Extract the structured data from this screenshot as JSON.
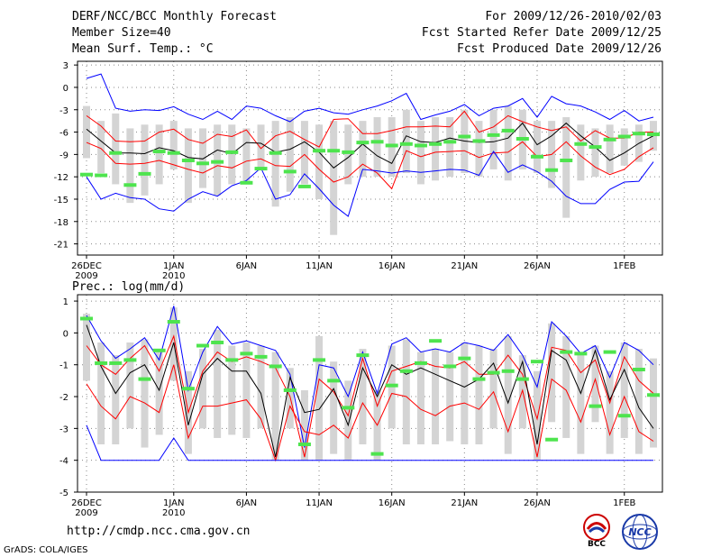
{
  "header": {
    "title": "DERF/NCC/BCC Monthly Forecast",
    "member": "Member Size=40",
    "variable": "Mean Surf. Temp.: °C",
    "period": "For 2009/12/26-2010/02/03",
    "start": "Fcst Started Refer Date 2009/12/25",
    "produced": "Fcst Produced Date 2009/12/26"
  },
  "footer": {
    "url": "http://cmdp.ncc.cma.gov.cn",
    "grads": "GrADS: COLA/IGES",
    "logo_bcc": "BCC",
    "logo_ncc": "NCC"
  },
  "colors": {
    "envelope": "#0000ff",
    "spread": "#ff0000",
    "mean": "#000000",
    "box": "#d4d4d4",
    "observed": "#4ee44e",
    "grid": "#888888"
  },
  "chart_data": [
    {
      "type": "line",
      "title": "Mean Surf. Temp.: °C",
      "ylim": [
        -22.5,
        3.5
      ],
      "yticks": [
        3,
        0,
        -3,
        -6,
        -9,
        -12,
        -15,
        -18,
        -21
      ],
      "x": [
        1,
        2,
        3,
        4,
        5,
        6,
        7,
        8,
        9,
        10,
        11,
        12,
        13,
        14,
        15,
        16,
        17,
        18,
        19,
        20,
        21,
        22,
        23,
        24,
        25,
        26,
        27,
        28,
        29,
        30,
        31,
        32,
        33,
        34,
        35,
        36,
        37,
        38,
        39,
        40
      ],
      "xtick_positions": [
        1,
        7,
        12,
        17,
        22,
        27,
        32,
        38
      ],
      "xtick_labels": [
        "26DEC",
        "1JAN",
        "6JAN",
        "11JAN",
        "16JAN",
        "21JAN",
        "26JAN",
        "1FEB"
      ],
      "xtick_sublabels": [
        "2009",
        "2010",
        "",
        "",
        "",
        "",
        "",
        ""
      ],
      "series": [
        {
          "name": "max",
          "values": [
            1.2,
            1.8,
            -2.8,
            -3.2,
            -3.0,
            -3.1,
            -2.6,
            -3.6,
            -4.3,
            -3.2,
            -4.3,
            -2.5,
            -2.8,
            -3.8,
            -4.6,
            -3.2,
            -2.8,
            -3.4,
            -3.6,
            -3.0,
            -2.5,
            -1.8,
            -0.8,
            -4.3,
            -3.7,
            -3.2,
            -2.3,
            -3.8,
            -2.8,
            -2.5,
            -1.5,
            -4.0,
            -1.2,
            -2.2,
            -2.5,
            -3.3,
            -4.3,
            -3.1,
            -4.5,
            -4.0
          ]
        },
        {
          "name": "p75",
          "values": [
            -3.8,
            -5.2,
            -7.2,
            -7.3,
            -7.2,
            -6.0,
            -5.6,
            -7.0,
            -7.5,
            -6.3,
            -6.6,
            -5.7,
            -8.2,
            -6.5,
            -5.9,
            -7.0,
            -8.0,
            -4.3,
            -4.2,
            -6.2,
            -6.2,
            -5.8,
            -5.3,
            -5.3,
            -5.2,
            -5.3,
            -3.2,
            -6.0,
            -5.3,
            -3.8,
            -4.6,
            -5.3,
            -5.8,
            -5.3,
            -7.2,
            -5.8,
            -6.8,
            -6.8,
            -6.0,
            -6.0
          ]
        },
        {
          "name": "mean",
          "values": [
            -5.6,
            -7.2,
            -8.8,
            -8.8,
            -8.9,
            -8.1,
            -8.5,
            -9.4,
            -9.6,
            -8.4,
            -8.9,
            -7.4,
            -7.5,
            -8.7,
            -8.3,
            -7.3,
            -8.7,
            -10.8,
            -9.4,
            -7.6,
            -9.2,
            -10.2,
            -6.5,
            -7.3,
            -7.4,
            -6.8,
            -7.2,
            -7.4,
            -7.3,
            -6.8,
            -4.8,
            -7.7,
            -6.5,
            -4.8,
            -6.5,
            -8.0,
            -9.8,
            -8.8,
            -7.5,
            -6.5
          ]
        },
        {
          "name": "p25",
          "values": [
            -7.4,
            -8.2,
            -10.2,
            -10.3,
            -10.2,
            -9.8,
            -10.4,
            -11.0,
            -11.5,
            -10.5,
            -10.8,
            -9.9,
            -9.6,
            -10.5,
            -10.6,
            -9.0,
            -11.0,
            -12.7,
            -12.0,
            -10.3,
            -11.5,
            -13.6,
            -8.5,
            -9.3,
            -8.7,
            -8.6,
            -8.5,
            -9.4,
            -8.8,
            -8.7,
            -7.3,
            -9.3,
            -9.0,
            -7.3,
            -9.2,
            -10.7,
            -11.7,
            -11.0,
            -9.3,
            -8.1
          ]
        },
        {
          "name": "min",
          "values": [
            -12.0,
            -15.0,
            -14.2,
            -14.8,
            -15.0,
            -16.3,
            -16.6,
            -15.0,
            -14.0,
            -14.6,
            -13.2,
            -12.5,
            -10.8,
            -15.0,
            -14.4,
            -11.6,
            -13.6,
            -15.8,
            -17.3,
            -11.0,
            -11.2,
            -11.5,
            -11.2,
            -11.4,
            -11.2,
            -11.0,
            -11.1,
            -11.8,
            -8.6,
            -11.4,
            -10.4,
            -11.3,
            -12.6,
            -14.6,
            -15.6,
            -15.6,
            -13.7,
            -12.7,
            -12.6,
            -10.0
          ]
        },
        {
          "name": "observed",
          "values": [
            -11.7,
            -11.8,
            -8.8,
            -13.1,
            -11.6,
            -8.6,
            -8.8,
            -9.8,
            -10.2,
            -10.0,
            -8.7,
            -12.8,
            -10.9,
            -8.8,
            -11.3,
            -13.3,
            -8.5,
            -8.5,
            -8.7,
            -7.4,
            -7.3,
            -7.8,
            -7.6,
            -7.8,
            -7.6,
            -7.3,
            -6.6,
            -7.2,
            -6.4,
            -5.8,
            -6.9,
            -9.3,
            -11.1,
            -9.8,
            -7.6,
            -8.0,
            -7.0,
            -6.6,
            -6.2,
            -6.3
          ]
        },
        {
          "name": "box_low",
          "values": [
            -9.5,
            -11.5,
            -13.0,
            -15.5,
            -14.5,
            -13.0,
            -11.0,
            -15.5,
            -13.5,
            -14.5,
            -13.0,
            -13.0,
            -11.0,
            -16.0,
            -14.0,
            -13.0,
            -15.0,
            -19.8,
            -13.0,
            -12.0,
            -12.0,
            -12.0,
            -11.5,
            -13.0,
            -12.5,
            -12.0,
            -11.5,
            -12.0,
            -11.0,
            -12.5,
            -11.0,
            -11.5,
            -13.5,
            -17.5,
            -12.5,
            -12.0,
            -11.5,
            -10.5,
            -10.0,
            -8.5
          ]
        },
        {
          "name": "box_high",
          "values": [
            -2.5,
            -4.5,
            -3.5,
            -5.5,
            -5.0,
            -5.0,
            -4.5,
            -5.5,
            -5.5,
            -5.0,
            -5.0,
            -5.5,
            -5.0,
            -4.5,
            -4.0,
            -4.5,
            -5.0,
            -4.5,
            -5.0,
            -4.5,
            -4.0,
            -4.0,
            -3.0,
            -4.5,
            -4.0,
            -4.0,
            -3.0,
            -4.5,
            -3.0,
            -2.5,
            -3.0,
            -4.5,
            -4.5,
            -4.0,
            -5.0,
            -5.5,
            -5.0,
            -5.5,
            -5.0,
            -4.5
          ]
        }
      ]
    },
    {
      "type": "line",
      "title": "Prec.: log(mm/d)",
      "ylim": [
        -5,
        1.2
      ],
      "yticks": [
        1,
        0,
        -1,
        -2,
        -3,
        -4,
        -5
      ],
      "x": [
        1,
        2,
        3,
        4,
        5,
        6,
        7,
        8,
        9,
        10,
        11,
        12,
        13,
        14,
        15,
        16,
        17,
        18,
        19,
        20,
        21,
        22,
        23,
        24,
        25,
        26,
        27,
        28,
        29,
        30,
        31,
        32,
        33,
        34,
        35,
        36,
        37,
        38,
        39,
        40
      ],
      "xtick_positions": [
        1,
        7,
        12,
        17,
        22,
        27,
        32,
        38
      ],
      "xtick_labels": [
        "26DEC",
        "1JAN",
        "6JAN",
        "11JAN",
        "16JAN",
        "21JAN",
        "26JAN",
        "1FEB"
      ],
      "xtick_sublabels": [
        "2009",
        "2010",
        "",
        "",
        "",
        "",
        "",
        ""
      ],
      "series": [
        {
          "name": "max",
          "values": [
            0.55,
            -0.25,
            -0.8,
            -0.5,
            -0.15,
            -0.85,
            0.85,
            -1.8,
            -0.6,
            0.2,
            -0.35,
            -0.25,
            -0.4,
            -0.55,
            -1.3,
            -3.6,
            -1.0,
            -1.1,
            -2.0,
            -0.6,
            -1.9,
            -0.35,
            -0.15,
            -0.6,
            -0.5,
            -0.6,
            -0.3,
            -0.4,
            -0.55,
            -0.05,
            -0.7,
            -1.7,
            0.35,
            -0.1,
            -0.65,
            -0.4,
            -1.4,
            -0.3,
            -0.55,
            -1.0
          ]
        },
        {
          "name": "p75",
          "values": [
            -0.4,
            -1.0,
            -1.3,
            -0.8,
            -0.4,
            -1.2,
            -0.1,
            -2.5,
            -1.2,
            -0.6,
            -0.9,
            -0.75,
            -0.9,
            -1.1,
            -2.0,
            -3.9,
            -1.45,
            -1.85,
            -2.6,
            -0.8,
            -2.3,
            -1.2,
            -1.05,
            -0.9,
            -1.05,
            -1.1,
            -0.9,
            -1.3,
            -1.3,
            -0.7,
            -1.3,
            -2.7,
            -0.45,
            -0.55,
            -1.25,
            -0.85,
            -2.2,
            -0.75,
            -1.5,
            -1.9
          ]
        },
        {
          "name": "mean",
          "values": [
            0.25,
            -1.05,
            -1.9,
            -1.25,
            -1.0,
            -1.8,
            -0.3,
            -2.9,
            -1.3,
            -0.8,
            -1.2,
            -1.2,
            -1.9,
            -3.9,
            -1.4,
            -2.5,
            -2.4,
            -1.75,
            -2.9,
            -1.1,
            -2.0,
            -1.0,
            -1.3,
            -1.1,
            -1.3,
            -1.5,
            -1.7,
            -1.45,
            -0.95,
            -2.2,
            -0.9,
            -3.5,
            -0.55,
            -0.85,
            -1.9,
            -0.55,
            -2.1,
            -1.15,
            -2.35,
            -3.0
          ]
        },
        {
          "name": "p25",
          "values": [
            -1.6,
            -2.3,
            -2.7,
            -2.0,
            -2.2,
            -2.5,
            -1.0,
            -3.3,
            -2.3,
            -2.3,
            -2.2,
            -2.1,
            -2.7,
            -4.0,
            -2.3,
            -3.1,
            -3.2,
            -2.9,
            -3.3,
            -2.2,
            -2.9,
            -1.9,
            -2.0,
            -2.4,
            -2.6,
            -2.3,
            -2.2,
            -2.4,
            -1.85,
            -3.1,
            -1.8,
            -3.9,
            -1.45,
            -1.8,
            -2.8,
            -1.45,
            -3.2,
            -2.0,
            -3.1,
            -3.4
          ]
        },
        {
          "name": "min",
          "values": [
            -2.9,
            -4.0,
            -4.0,
            -4.0,
            -4.0,
            -4.0,
            -3.3,
            -4.0,
            -4.0,
            -4.0,
            -4.0,
            -4.0,
            -4.0,
            -4.0,
            -4.0,
            -4.0,
            -4.0,
            -4.0,
            -4.0,
            -4.0,
            -4.0,
            -4.0,
            -4.0,
            -4.0,
            -4.0,
            -4.0,
            -4.0,
            -4.0,
            -4.0,
            -4.0,
            -4.0,
            -4.0,
            -4.0,
            -4.0,
            -4.0,
            -4.0,
            -4.0,
            -4.0,
            -4.0,
            -4.0
          ]
        },
        {
          "name": "observed",
          "values": [
            0.45,
            -0.95,
            -0.95,
            -0.85,
            -1.45,
            -0.55,
            0.35,
            -1.75,
            -0.4,
            -0.3,
            -0.85,
            -0.65,
            -0.75,
            -1.05,
            -1.8,
            -3.5,
            -0.85,
            -1.5,
            -2.35,
            -0.7,
            -3.8,
            -1.65,
            -1.2,
            -0.95,
            -0.25,
            -1.05,
            -0.8,
            -1.45,
            -1.25,
            -1.2,
            -1.45,
            -0.9,
            -3.35,
            -0.6,
            -0.65,
            -2.3,
            -0.6,
            -2.6,
            -1.15,
            -1.95
          ]
        },
        {
          "name": "box_low",
          "values": [
            -1.5,
            -3.5,
            -3.5,
            -3.0,
            -3.6,
            -3.2,
            -1.5,
            -3.8,
            -3.0,
            -3.3,
            -3.2,
            -3.3,
            -3.0,
            -4.0,
            -3.0,
            -4.0,
            -4.0,
            -3.8,
            -4.0,
            -3.5,
            -4.0,
            -3.0,
            -3.5,
            -3.5,
            -3.5,
            -3.4,
            -3.5,
            -3.5,
            -3.0,
            -3.8,
            -3.0,
            -4.0,
            -2.8,
            -3.3,
            -3.8,
            -2.8,
            -3.8,
            -3.3,
            -3.8,
            -3.6
          ]
        },
        {
          "name": "box_high",
          "values": [
            0.6,
            -0.3,
            -0.7,
            -0.3,
            -0.2,
            -0.6,
            0.8,
            -1.2,
            -0.5,
            0.1,
            -0.4,
            -0.3,
            -0.4,
            -0.6,
            -1.1,
            -1.8,
            -0.1,
            -0.9,
            -1.5,
            -0.5,
            -1.8,
            -0.4,
            -0.2,
            -0.6,
            -0.5,
            -0.6,
            -0.3,
            -0.4,
            -0.5,
            -0.1,
            -0.7,
            -1.2,
            0.3,
            -0.1,
            -0.6,
            -0.4,
            -1.2,
            -0.3,
            -0.5,
            -0.8
          ]
        }
      ]
    }
  ]
}
